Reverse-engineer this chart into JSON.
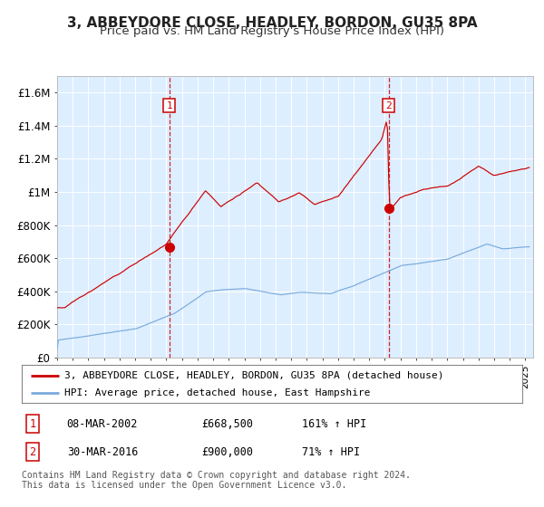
{
  "title": "3, ABBEYDORE CLOSE, HEADLEY, BORDON, GU35 8PA",
  "subtitle": "Price paid vs. HM Land Registry's House Price Index (HPI)",
  "title_fontsize": 11,
  "subtitle_fontsize": 9.5,
  "background_color": "#ffffff",
  "plot_bg_color": "#ddeeff",
  "grid_color": "#ffffff",
  "red_line_color": "#cc0000",
  "blue_line_color": "#7aaadd",
  "ylim": [
    0,
    1700000
  ],
  "yticks": [
    0,
    200000,
    400000,
    600000,
    800000,
    1000000,
    1200000,
    1400000,
    1600000
  ],
  "ytick_labels": [
    "£0",
    "£200K",
    "£400K",
    "£600K",
    "£800K",
    "£1M",
    "£1.2M",
    "£1.4M",
    "£1.6M"
  ],
  "sale1_date": 2002.18,
  "sale1_price": 668500,
  "sale2_date": 2016.24,
  "sale2_price": 900000,
  "legend_label_red": "3, ABBEYDORE CLOSE, HEADLEY, BORDON, GU35 8PA (detached house)",
  "legend_label_blue": "HPI: Average price, detached house, East Hampshire",
  "table_row1": [
    "1",
    "08-MAR-2002",
    "£668,500",
    "161% ↑ HPI"
  ],
  "table_row2": [
    "2",
    "30-MAR-2016",
    "£900,000",
    "71% ↑ HPI"
  ],
  "footer": "Contains HM Land Registry data © Crown copyright and database right 2024.\nThis data is licensed under the Open Government Licence v3.0.",
  "xstart": 1995.0,
  "xend": 2025.5
}
